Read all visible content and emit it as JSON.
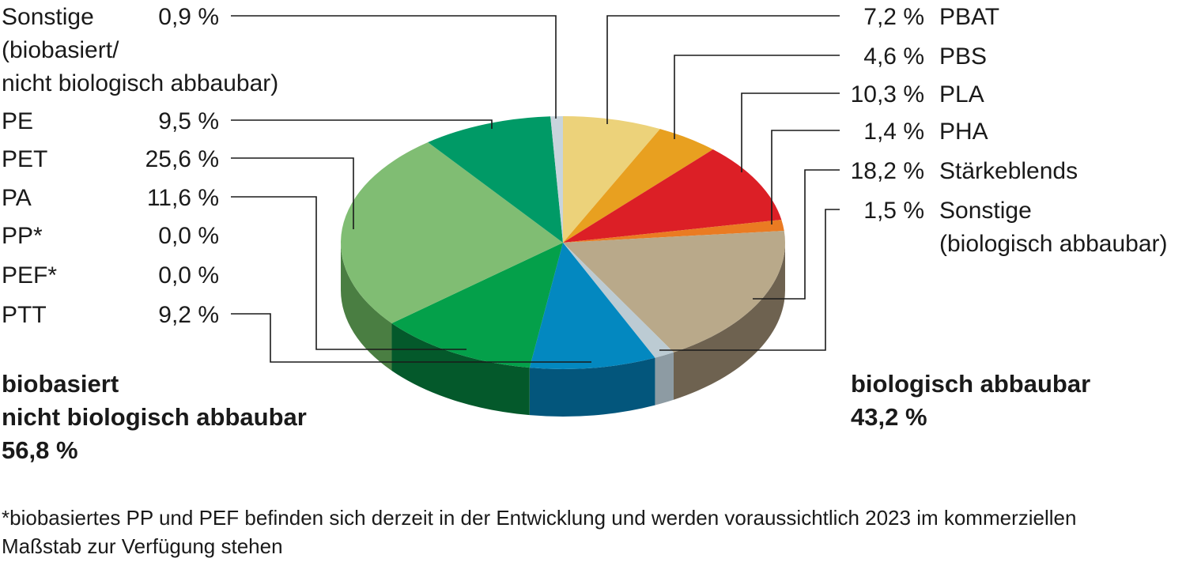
{
  "chart_data": {
    "type": "pie",
    "title": "",
    "groups": [
      {
        "title_lines": [
          "biobasiert",
          "nicht biologisch abbaubar"
        ],
        "total": "56,8 %"
      },
      {
        "title_lines": [
          "biologisch abbaubar"
        ],
        "total": "43,2 %"
      }
    ],
    "slices": [
      {
        "name": "PBAT",
        "name_lines": [
          "PBAT"
        ],
        "value": 7.2,
        "label": "7,2 %",
        "group": "biologisch abbaubar",
        "color": "#ecd27a",
        "side": "#c9b05c"
      },
      {
        "name": "PBS",
        "name_lines": [
          "PBS"
        ],
        "value": 4.6,
        "label": "4,6 %",
        "group": "biologisch abbaubar",
        "color": "#e8a020",
        "side": "#b87b12"
      },
      {
        "name": "PLA",
        "name_lines": [
          "PLA"
        ],
        "value": 10.3,
        "label": "10,3 %",
        "group": "biologisch abbaubar",
        "color": "#dc1f26",
        "side": "#a3151a"
      },
      {
        "name": "PHA",
        "name_lines": [
          "PHA"
        ],
        "value": 1.4,
        "label": "1,4 %",
        "group": "biologisch abbaubar",
        "color": "#ea7b22",
        "side": "#b85e16"
      },
      {
        "name": "Stärkeblends",
        "name_lines": [
          "Stärkeblends"
        ],
        "value": 18.2,
        "label": "18,2 %",
        "group": "biologisch abbaubar",
        "color": "#b9a98a",
        "side": "#6e6250"
      },
      {
        "name": "Sonstige (biologisch abbaubar)",
        "name_lines": [
          "Sonstige",
          "(biologisch abbaubar)"
        ],
        "value": 1.5,
        "label": "1,5 %",
        "group": "biologisch abbaubar",
        "color": "#bccbd3",
        "side": "#8d9ba3"
      },
      {
        "name": "PTT",
        "name_lines": [
          "PTT"
        ],
        "value": 9.2,
        "label": "9,2 %",
        "group": "biobasiert nicht biologisch abbaubar",
        "color": "#0388c0",
        "side": "#03567c"
      },
      {
        "name": "PEF*",
        "name_lines": [
          "PEF*"
        ],
        "value": 0.0,
        "label": "0,0 %",
        "group": "biobasiert nicht biologisch abbaubar",
        "color": "#0a7a4a",
        "side": "#064a2e"
      },
      {
        "name": "PP*",
        "name_lines": [
          "PP*"
        ],
        "value": 0.0,
        "label": "0,0 %",
        "group": "biobasiert nicht biologisch abbaubar",
        "color": "#0a7a4a",
        "side": "#064a2e"
      },
      {
        "name": "PA",
        "name_lines": [
          "PA"
        ],
        "value": 11.6,
        "label": "11,6 %",
        "group": "biobasiert nicht biologisch abbaubar",
        "color": "#04a04a",
        "side": "#04592b"
      },
      {
        "name": "PET",
        "name_lines": [
          "PET"
        ],
        "value": 25.6,
        "label": "25,6 %",
        "group": "biobasiert nicht biologisch abbaubar",
        "color": "#80bd73",
        "side": "#4a7e42"
      },
      {
        "name": "PE",
        "name_lines": [
          "PE"
        ],
        "value": 9.5,
        "label": "9,5 %",
        "group": "biobasiert nicht biologisch abbaubar",
        "color": "#009a66",
        "side": "#006040"
      },
      {
        "name": "Sonstige (biobasiert/nicht biologisch abbaubar)",
        "name_lines": [
          "Sonstige",
          "(biobasiert/",
          "nicht biologisch abbaubar)"
        ],
        "value": 0.9,
        "label": "0,9 %",
        "group": "biobasiert nicht biologisch abbaubar",
        "color": "#c8d4dc",
        "side": "#98a4ac"
      }
    ],
    "footnote_lines": [
      "*biobasiertes PP und PEF befinden sich derzeit in der Entwicklung und werden voraussichtlich 2023 im kommerziellen",
      "Maßstab zur Verfügung stehen"
    ]
  }
}
